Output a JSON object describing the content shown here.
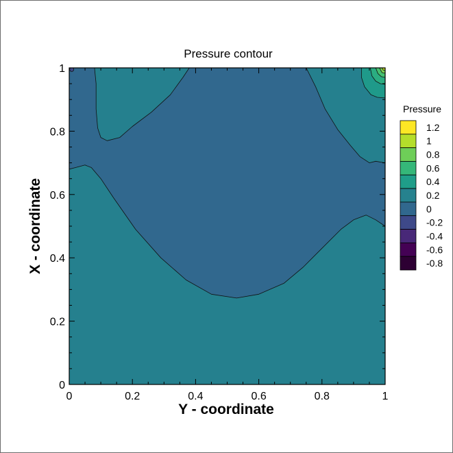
{
  "chart_data": {
    "type": "contour",
    "title": "Pressure contour",
    "xlabel": "Y - coordinate",
    "ylabel": "X - coordinate",
    "xlim": [
      0,
      1
    ],
    "ylim": [
      0,
      1
    ],
    "x_ticks": [
      "0",
      "0.2",
      "0.4",
      "0.6",
      "0.8",
      "1"
    ],
    "y_ticks": [
      "0",
      "0.2",
      "0.4",
      "0.6",
      "0.8",
      "1"
    ],
    "grid": false,
    "legend": {
      "title": "Pressure",
      "placement": "right",
      "levels": [
        {
          "label": "1.2",
          "value": 1.2,
          "color": "#fde725"
        },
        {
          "label": "1",
          "value": 1.0,
          "color": "#b5de2b"
        },
        {
          "label": "0.8",
          "value": 0.8,
          "color": "#6ece58"
        },
        {
          "label": "0.6",
          "value": 0.6,
          "color": "#35b779"
        },
        {
          "label": "0.4",
          "value": 0.4,
          "color": "#1f9e89"
        },
        {
          "label": "0.2",
          "value": 0.2,
          "color": "#26828e"
        },
        {
          "label": "0",
          "value": 0.0,
          "color": "#31688e"
        },
        {
          "label": "-0.2",
          "value": -0.2,
          "color": "#3e4989"
        },
        {
          "label": "-0.4",
          "value": -0.4,
          "color": "#482878"
        },
        {
          "label": "-0.6",
          "value": -0.6,
          "color": "#440154"
        },
        {
          "label": "-0.8",
          "value": -0.8,
          "color": "#2d0033"
        }
      ]
    },
    "regions": [
      {
        "name": "lower-band",
        "level_range": [
          0,
          0.2
        ],
        "color": "#25808e",
        "boundary": [
          [
            0,
            0
          ],
          [
            1,
            0
          ],
          [
            1,
            0.5
          ],
          [
            0.97,
            0.52
          ],
          [
            0.94,
            0.535
          ],
          [
            0.9,
            0.52
          ],
          [
            0.86,
            0.49
          ],
          [
            0.8,
            0.43
          ],
          [
            0.74,
            0.37
          ],
          [
            0.68,
            0.32
          ],
          [
            0.6,
            0.285
          ],
          [
            0.53,
            0.273
          ],
          [
            0.45,
            0.285
          ],
          [
            0.37,
            0.33
          ],
          [
            0.29,
            0.4
          ],
          [
            0.21,
            0.49
          ],
          [
            0.14,
            0.59
          ],
          [
            0.1,
            0.65
          ],
          [
            0.07,
            0.685
          ],
          [
            0.05,
            0.693
          ],
          [
            0.02,
            0.685
          ],
          [
            0,
            0.68
          ]
        ]
      },
      {
        "name": "upper-left-lobe",
        "level_range": [
          0,
          0.2
        ],
        "color": "#25808e",
        "boundary": [
          [
            0.08,
            1
          ],
          [
            0.38,
            1
          ],
          [
            0.36,
            0.97
          ],
          [
            0.32,
            0.915
          ],
          [
            0.26,
            0.86
          ],
          [
            0.2,
            0.815
          ],
          [
            0.16,
            0.78
          ],
          [
            0.12,
            0.77
          ],
          [
            0.1,
            0.78
          ],
          [
            0.09,
            0.81
          ],
          [
            0.085,
            0.87
          ],
          [
            0.085,
            0.95
          ]
        ]
      },
      {
        "name": "upper-right-lobe",
        "level_range": [
          0,
          0.2
        ],
        "color": "#25808e",
        "boundary": [
          [
            0.75,
            1
          ],
          [
            1,
            1
          ],
          [
            1,
            0.7
          ],
          [
            0.97,
            0.705
          ],
          [
            0.95,
            0.7
          ],
          [
            0.92,
            0.72
          ],
          [
            0.89,
            0.755
          ],
          [
            0.85,
            0.805
          ],
          [
            0.81,
            0.87
          ],
          [
            0.78,
            0.94
          ]
        ]
      },
      {
        "name": "corner-0.2-0.4",
        "level_range": [
          0.2,
          0.4
        ],
        "color": "#1f9a8a",
        "boundary": [
          [
            0.925,
            1
          ],
          [
            1,
            1
          ],
          [
            1,
            0.905
          ],
          [
            0.975,
            0.907
          ],
          [
            0.955,
            0.915
          ],
          [
            0.935,
            0.94
          ],
          [
            0.925,
            0.97
          ]
        ]
      },
      {
        "name": "corner-0.4-0.6",
        "level_range": [
          0.4,
          0.6
        ],
        "color": "#2bad81",
        "boundary": [
          [
            0.953,
            1
          ],
          [
            1,
            1
          ],
          [
            1,
            0.948
          ],
          [
            0.985,
            0.95
          ],
          [
            0.97,
            0.958
          ],
          [
            0.958,
            0.975
          ]
        ]
      },
      {
        "name": "corner-0.6-0.8",
        "level_range": [
          0.6,
          0.8
        ],
        "color": "#45bf70",
        "boundary": [
          [
            0.97,
            1
          ],
          [
            1,
            1
          ],
          [
            1,
            0.97
          ],
          [
            0.988,
            0.972
          ],
          [
            0.977,
            0.982
          ]
        ]
      },
      {
        "name": "corner-0.8-1.0",
        "level_range": [
          0.8,
          1.0
        ],
        "color": "#7ad151",
        "boundary": [
          [
            0.982,
            1
          ],
          [
            1,
            1
          ],
          [
            1,
            0.983
          ],
          [
            0.99,
            0.985
          ]
        ]
      },
      {
        "name": "corner-1.0-1.2",
        "level_range": [
          1.0,
          1.2
        ],
        "color": "#c2df23",
        "boundary": [
          [
            0.99,
            1
          ],
          [
            1,
            1
          ],
          [
            1,
            0.992
          ],
          [
            0.994,
            0.993
          ]
        ]
      }
    ],
    "negative_corner": {
      "x": 0.008,
      "y": 0.995,
      "color": "#3e4989"
    },
    "background_level_range": [
      -0.2,
      0
    ],
    "background_color": "#31688e"
  }
}
